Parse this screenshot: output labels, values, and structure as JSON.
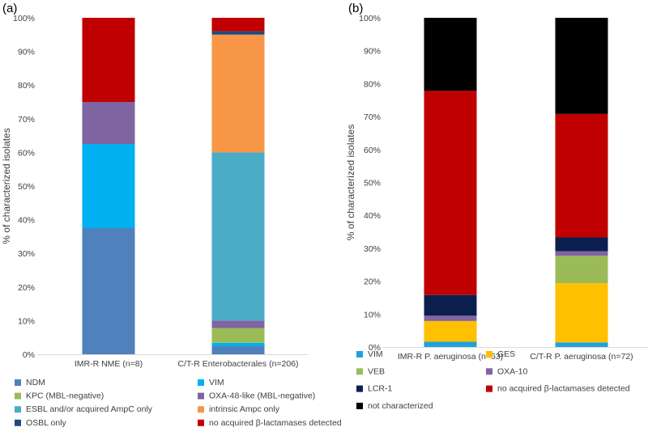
{
  "panels": [
    {
      "panel_label": "(a)",
      "legend": [
        {
          "label": "NDM",
          "color": "#4f81bd"
        },
        {
          "label": "VIM",
          "color": "#00b0f0"
        },
        {
          "label": "KPC (MBL-negative)",
          "color": "#9bbb59"
        },
        {
          "label": "OXA-48-like (MBL-negative)",
          "color": "#8064a2"
        },
        {
          "label": "ESBL and/or acquired AmpC only",
          "color": "#4bacc6"
        },
        {
          "label": "intrinsic Ampc only",
          "color": "#f79646"
        },
        {
          "label": "OSBL only",
          "color": "#1f497d"
        },
        {
          "label": "no acquired β-lactamases detected",
          "color": "#c00000"
        }
      ]
    },
    {
      "panel_label": "(b)",
      "legend": [
        {
          "label": "VIM",
          "color": "#1fa2dc"
        },
        {
          "label": "GES",
          "color": "#ffc000"
        },
        {
          "label": "VEB",
          "color": "#9bbb59"
        },
        {
          "label": "OXA-10",
          "color": "#8064a2"
        },
        {
          "label": "LCR-1",
          "color": "#0b1f4f"
        },
        {
          "label": "no acquired β-lactamases detected",
          "color": "#c00000"
        },
        {
          "label": "not characterized",
          "color": "#000000"
        }
      ]
    }
  ],
  "chart_data": [
    {
      "type": "bar",
      "stacked": true,
      "ylabel": "% of characterized isolates",
      "ylim": [
        0,
        100
      ],
      "yticks": [
        "0%",
        "10%",
        "20%",
        "30%",
        "40%",
        "50%",
        "60%",
        "70%",
        "80%",
        "90%",
        "100%"
      ],
      "grid": false,
      "categories": [
        "IMR-R NME (n=8)",
        "C/T-R  Enterobacterales (n=206)"
      ],
      "series": [
        {
          "name": "NDM",
          "values": [
            37.5,
            2.4
          ]
        },
        {
          "name": "VIM",
          "values": [
            25.0,
            1.0
          ]
        },
        {
          "name": "KPC (MBL-negative)",
          "values": [
            0,
            4.4
          ]
        },
        {
          "name": "OXA-48-like (MBL-negative)",
          "values": [
            12.5,
            2.2
          ]
        },
        {
          "name": "ESBL and/or acquired AmpC only",
          "values": [
            0,
            50.0
          ]
        },
        {
          "name": "intrinsic Ampc only",
          "values": [
            0,
            35.0
          ]
        },
        {
          "name": "OSBL only",
          "values": [
            0,
            1.0
          ]
        },
        {
          "name": "no acquired β-lactamases detected",
          "values": [
            25.0,
            4.0
          ]
        }
      ]
    },
    {
      "type": "bar",
      "stacked": true,
      "ylabel": "% of characterized isolates",
      "ylim": [
        0,
        100
      ],
      "yticks": [
        "0%",
        "10%",
        "20%",
        "30%",
        "40%",
        "50%",
        "60%",
        "70%",
        "80%",
        "90%",
        "100%"
      ],
      "grid": false,
      "categories": [
        "IMR-R  P. aeruginosa (n=63)",
        "C/T-R  P. aeruginosa (n=72)"
      ],
      "series": [
        {
          "name": "VIM",
          "values": [
            1.6,
            1.4
          ]
        },
        {
          "name": "GES",
          "values": [
            6.3,
            18.0
          ]
        },
        {
          "name": "VEB",
          "values": [
            0,
            8.3
          ]
        },
        {
          "name": "OXA-10",
          "values": [
            1.6,
            1.4
          ]
        },
        {
          "name": "LCR-1",
          "values": [
            6.3,
            4.2
          ]
        },
        {
          "name": "no acquired β-lactamases detected",
          "values": [
            62.0,
            37.5
          ]
        },
        {
          "name": "not characterized",
          "values": [
            22.2,
            29.2
          ]
        }
      ]
    }
  ]
}
